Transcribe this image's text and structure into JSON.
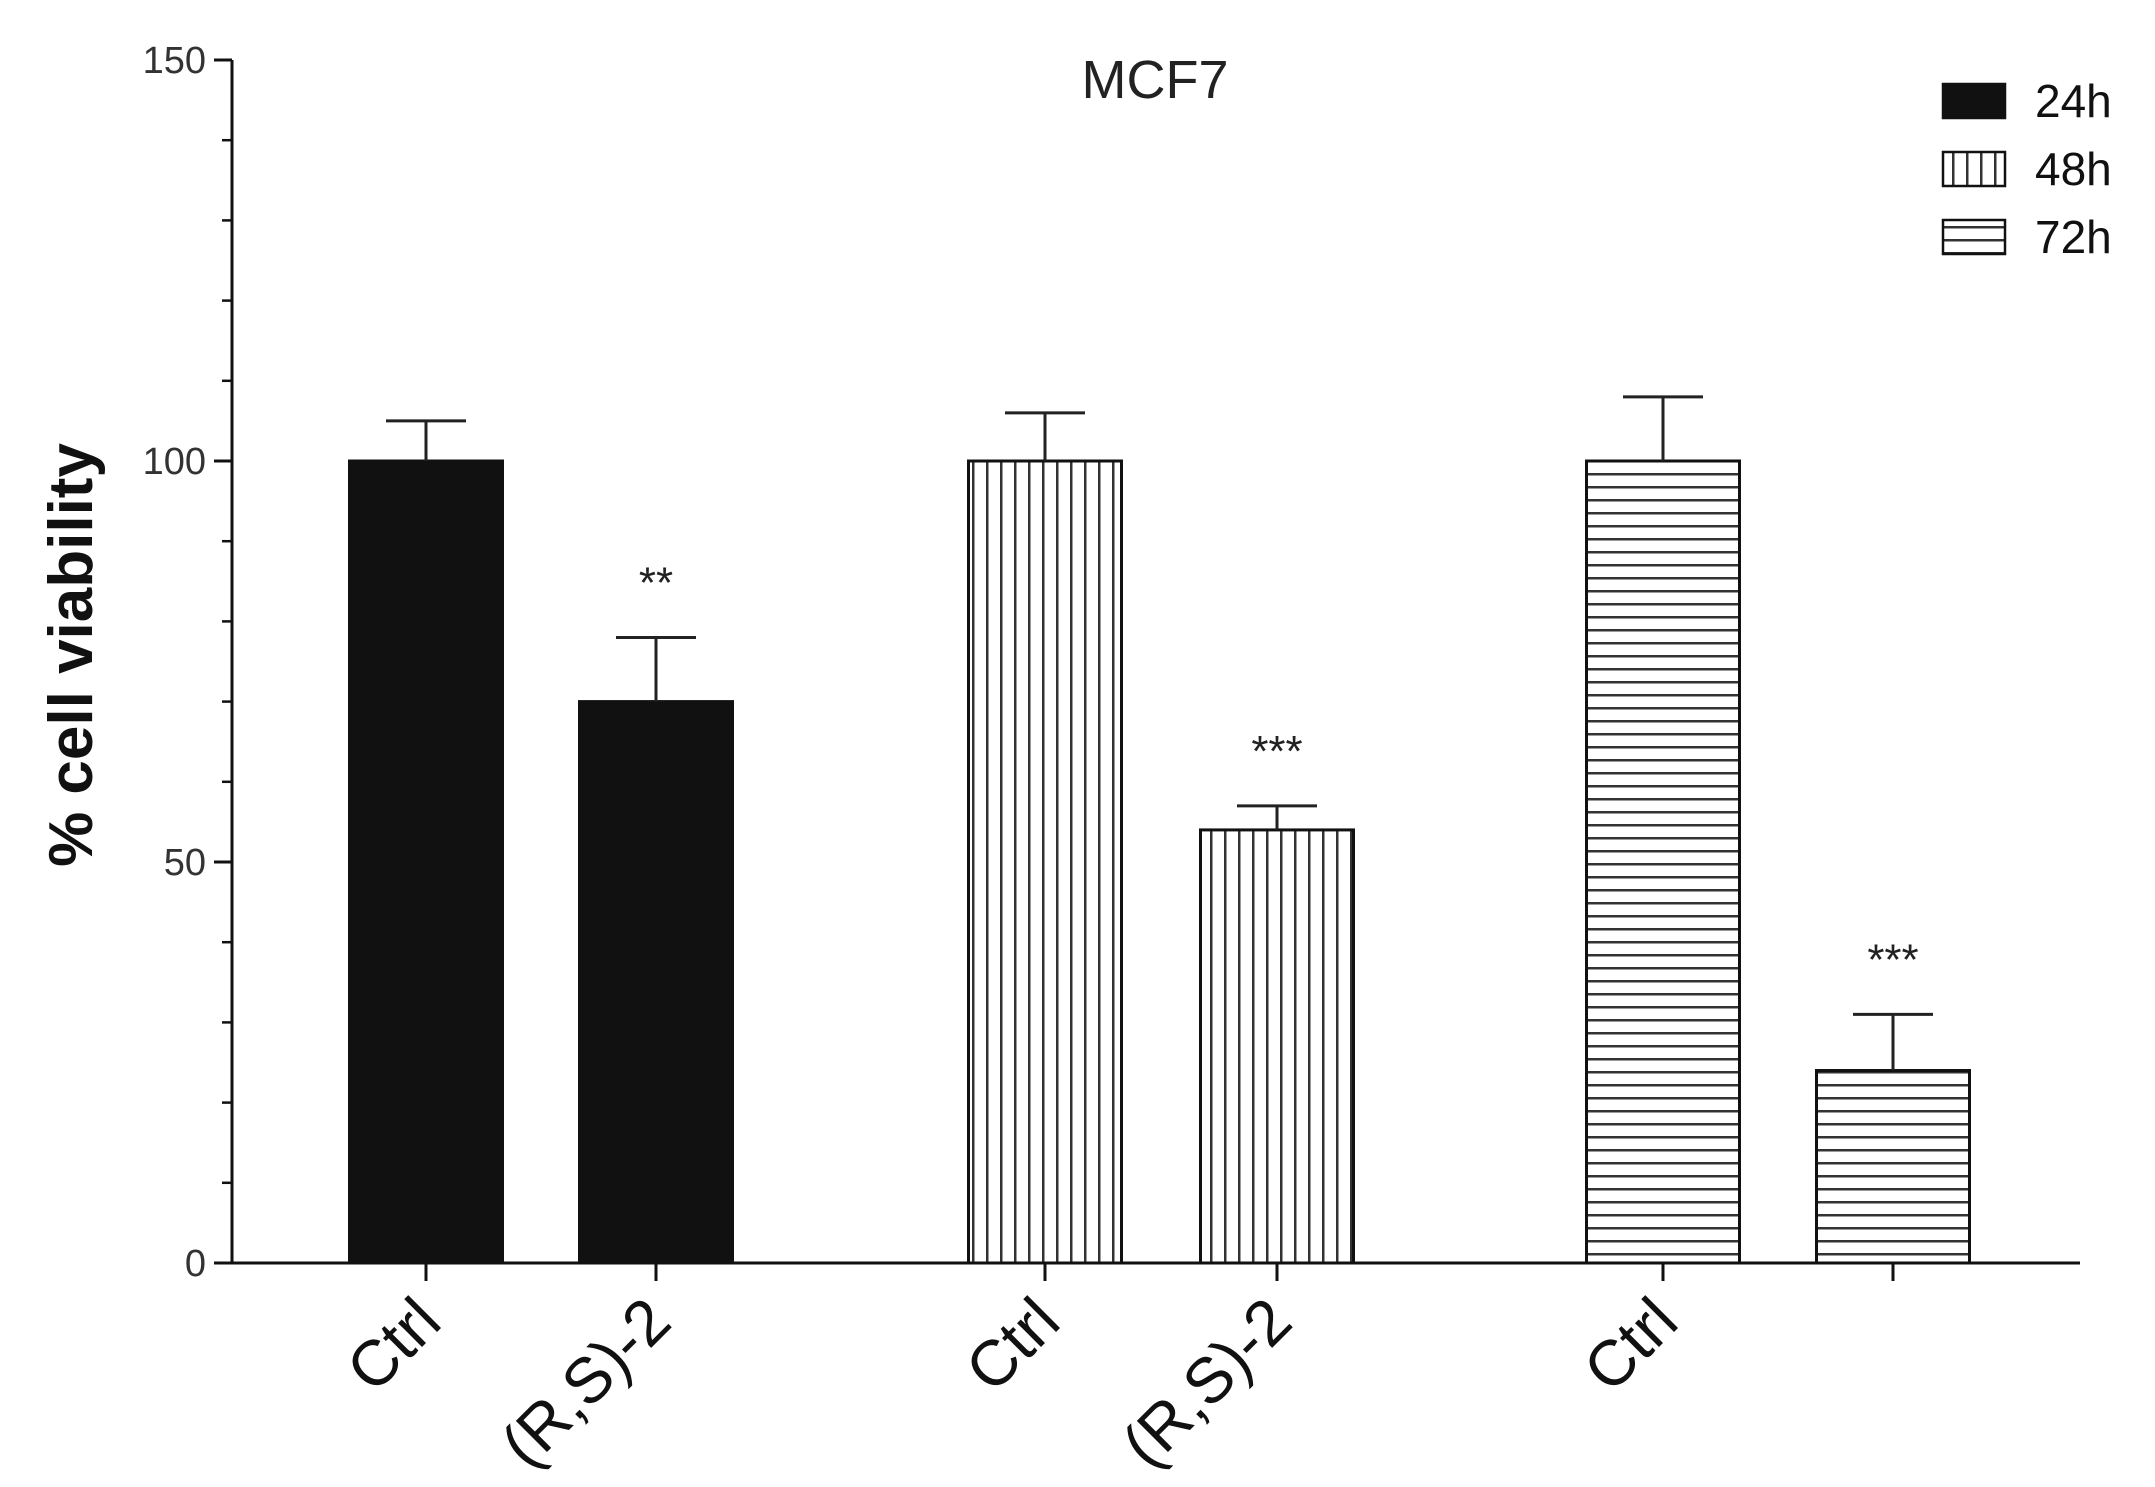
{
  "chart_data": {
    "type": "bar",
    "title": "MCF7",
    "xlabel": "",
    "ylabel": "% cell viability",
    "ylim": [
      0,
      150
    ],
    "yticks": [
      0,
      50,
      100,
      150
    ],
    "grid": false,
    "legend_position": "top-right",
    "legend": [
      {
        "name": "24h",
        "pattern": "solid"
      },
      {
        "name": "48h",
        "pattern": "vertical-stripes"
      },
      {
        "name": "72h",
        "pattern": "horizontal-stripes"
      }
    ],
    "bars": [
      {
        "label": "Ctrl",
        "series": "24h",
        "value": 100,
        "error": 5,
        "significance": ""
      },
      {
        "label": "(R,S)-2",
        "series": "24h",
        "value": 70,
        "error": 8,
        "significance": "**"
      },
      {
        "label": "Ctrl",
        "series": "48h",
        "value": 100,
        "error": 6,
        "significance": ""
      },
      {
        "label": "(R,S)-2",
        "series": "48h",
        "value": 54,
        "error": 3,
        "significance": "***"
      },
      {
        "label": "Ctrl",
        "series": "72h",
        "value": 100,
        "error": 8,
        "significance": ""
      },
      {
        "label": "",
        "series": "72h",
        "value": 24,
        "error": 7,
        "significance": "***"
      }
    ]
  }
}
